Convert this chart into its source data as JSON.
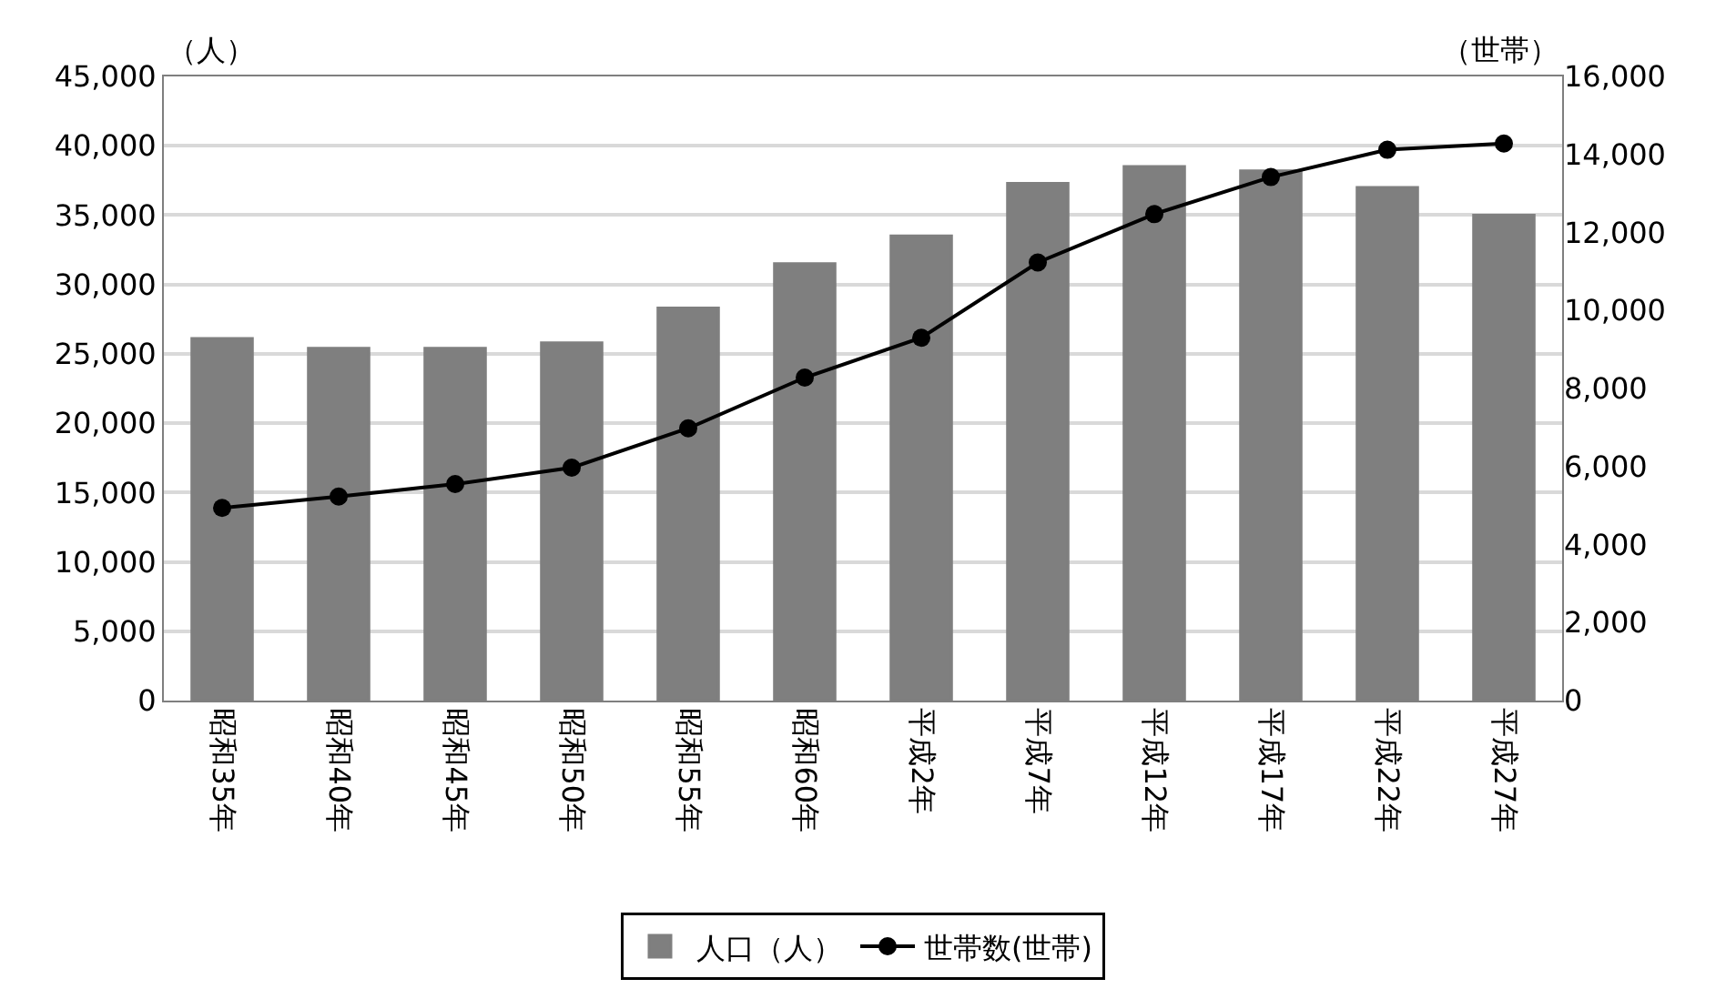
{
  "chart_data": {
    "type": "bar",
    "ylabel": "（人）",
    "y2label": "（世帯）",
    "categories": [
      "昭和35年",
      "昭和40年",
      "昭和45年",
      "昭和50年",
      "昭和55年",
      "昭和60年",
      "平成2年",
      "平成7年",
      "平成12年",
      "平成17年",
      "平成22年",
      "平成27年"
    ],
    "series": [
      {
        "name": "人口（人）",
        "color": "#7f7f7f",
        "values": [
          26100,
          25400,
          25400,
          25800,
          28300,
          31500,
          33500,
          37300,
          38500,
          38200,
          37000,
          35000
        ]
      },
      {
        "name": "世帯数(世帯)",
        "type": "line",
        "axis": "y2",
        "color": "#000000",
        "marker": "circle",
        "values": [
          4940,
          5230,
          5550,
          5970,
          6980,
          8280,
          9300,
          11230,
          12470,
          13420,
          14120,
          14280
        ]
      }
    ],
    "ylim": [
      0,
      45000
    ],
    "yticks": [
      {
        "value": 0,
        "label": "0"
      },
      {
        "value": 5000,
        "label": "5,000"
      },
      {
        "value": 10000,
        "label": "10,000"
      },
      {
        "value": 15000,
        "label": "15,000"
      },
      {
        "value": 20000,
        "label": "20,000"
      },
      {
        "value": 25000,
        "label": "25,000"
      },
      {
        "value": 30000,
        "label": "30,000"
      },
      {
        "value": 35000,
        "label": "35,000"
      },
      {
        "value": 40000,
        "label": "40,000"
      },
      {
        "value": 45000,
        "label": "45,000"
      }
    ],
    "y2lim": [
      0,
      16000
    ],
    "y2ticks": [
      {
        "value": 0,
        "label": "0"
      },
      {
        "value": 2000,
        "label": "2,000"
      },
      {
        "value": 4000,
        "label": "4,000"
      },
      {
        "value": 6000,
        "label": "6,000"
      },
      {
        "value": 8000,
        "label": "8,000"
      },
      {
        "value": 10000,
        "label": "10,000"
      },
      {
        "value": 12000,
        "label": "12,000"
      },
      {
        "value": 14000,
        "label": "14,000"
      },
      {
        "value": 16000,
        "label": "16,000"
      }
    ],
    "grid": "y",
    "legend": "bottom"
  }
}
